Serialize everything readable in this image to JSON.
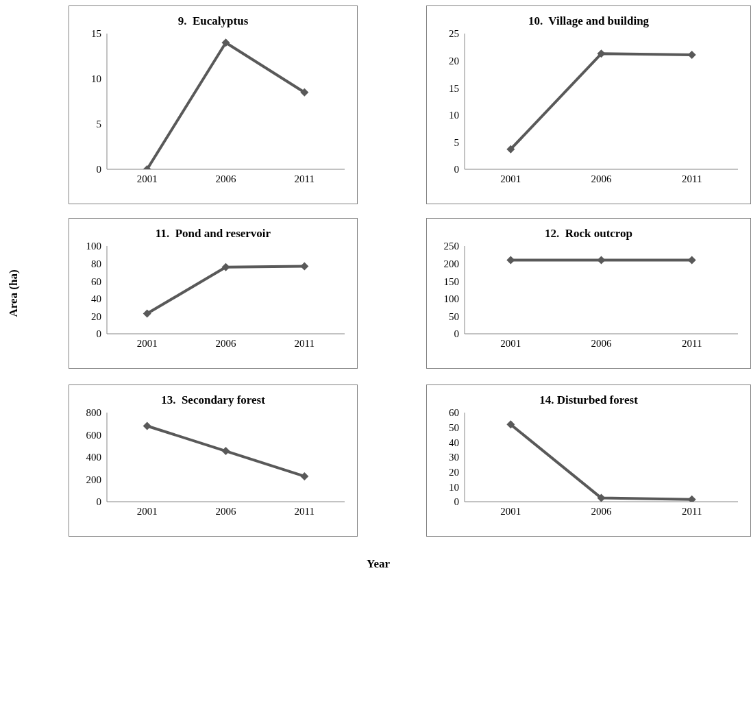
{
  "chart_data": [
    {
      "type": "line",
      "title": "9.  Eucalyptus",
      "categories": [
        "2001",
        "2006",
        "2011"
      ],
      "series": [
        {
          "color": "#595959",
          "values": [
            0,
            14,
            8.5
          ]
        }
      ],
      "ylim": [
        0,
        15
      ],
      "yticks": [
        0,
        5,
        10,
        15
      ],
      "marker": "diamond"
    },
    {
      "type": "line",
      "title": "10.  Village and building",
      "categories": [
        "2001",
        "2006",
        "2011"
      ],
      "series": [
        {
          "color": "#595959",
          "values": [
            3.7,
            21.3,
            21.1
          ]
        }
      ],
      "ylim": [
        0,
        25
      ],
      "yticks": [
        0,
        5,
        10,
        15,
        20,
        25
      ],
      "marker": "diamond"
    },
    {
      "type": "line",
      "title": "11.  Pond and reservoir",
      "ylabel": "Area (ha)",
      "categories": [
        "2001",
        "2006",
        "2011"
      ],
      "series": [
        {
          "color": "#595959",
          "values": [
            23,
            76,
            77
          ]
        }
      ],
      "ylim": [
        0,
        100
      ],
      "yticks": [
        0,
        20,
        40,
        60,
        80,
        100
      ],
      "marker": "diamond"
    },
    {
      "type": "line",
      "title": "12.  Rock outcrop",
      "categories": [
        "2001",
        "2006",
        "2011"
      ],
      "series": [
        {
          "color": "#595959",
          "values": [
            210,
            210,
            210
          ]
        }
      ],
      "ylim": [
        0,
        250
      ],
      "yticks": [
        0,
        50,
        100,
        150,
        200,
        250
      ],
      "marker": "diamond"
    },
    {
      "type": "line",
      "title": "13.  Secondary forest",
      "xlabel": "Year",
      "categories": [
        "2001",
        "2006",
        "2011"
      ],
      "series": [
        {
          "color": "#595959",
          "values": [
            680,
            455,
            228
          ]
        }
      ],
      "ylim": [
        0,
        800
      ],
      "yticks": [
        0,
        200,
        400,
        600,
        800
      ],
      "marker": "diamond"
    },
    {
      "type": "line",
      "title": "14. Disturbed forest",
      "categories": [
        "2001",
        "2006",
        "2011"
      ],
      "series": [
        {
          "color": "#595959",
          "values": [
            52,
            2.5,
            1.5
          ]
        }
      ],
      "ylim": [
        0,
        60
      ],
      "yticks": [
        0,
        10,
        20,
        30,
        40,
        50,
        60
      ],
      "marker": "diamond"
    }
  ]
}
